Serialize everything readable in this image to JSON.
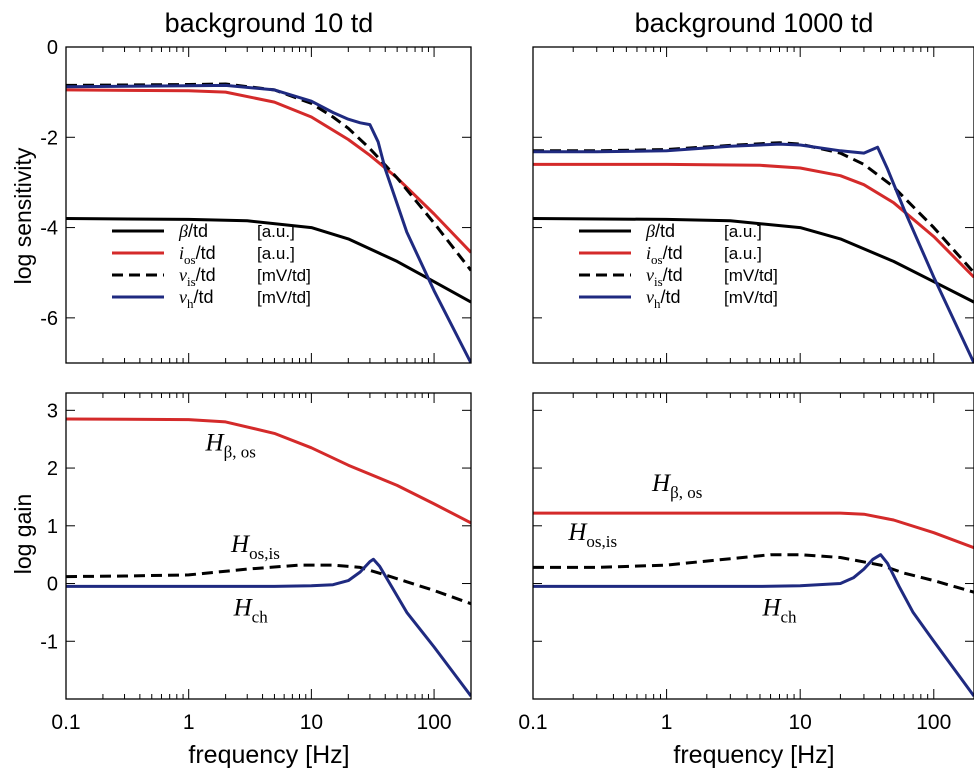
{
  "colors": {
    "black": "#000000",
    "red": "#d42a2a",
    "blue": "#1f2a80",
    "dashed": "#000000"
  },
  "chart_data": [
    {
      "type": "line",
      "title": "background 10 td",
      "xlabel": "",
      "ylabel": "log sensitivity",
      "xscale": "log",
      "xlim": [
        0.1,
        200
      ],
      "ylim": [
        -7,
        0
      ],
      "xticks": [
        0.1,
        1,
        10,
        100
      ],
      "xtick_labels": [
        "0.1",
        "1",
        "10",
        "100"
      ],
      "yticks": [
        0,
        -2,
        -4,
        -6
      ],
      "ytick_labels": [
        "0",
        "-2",
        "-4",
        "-6"
      ],
      "legend_position": "lower-left",
      "series": [
        {
          "name": "β/td [a.u.]",
          "style": "solid",
          "color": "black",
          "x": [
            0.1,
            1,
            3,
            10,
            20,
            50,
            100,
            200
          ],
          "y": [
            -3.8,
            -3.82,
            -3.85,
            -4.0,
            -4.25,
            -4.75,
            -5.2,
            -5.65
          ]
        },
        {
          "name": "i_os/td [a.u.]",
          "style": "solid",
          "color": "red",
          "x": [
            0.1,
            1,
            2,
            5,
            10,
            20,
            30,
            50,
            100,
            200
          ],
          "y": [
            -0.95,
            -0.97,
            -1.0,
            -1.22,
            -1.55,
            -2.05,
            -2.4,
            -2.9,
            -3.7,
            -4.55
          ]
        },
        {
          "name": "v_is/td [mV/td]",
          "style": "dashed",
          "color": "black",
          "x": [
            0.1,
            1,
            2,
            5,
            10,
            15,
            20,
            30,
            50,
            100,
            200
          ],
          "y": [
            -0.85,
            -0.83,
            -0.82,
            -0.95,
            -1.25,
            -1.55,
            -1.8,
            -2.25,
            -2.9,
            -3.9,
            -4.95
          ]
        },
        {
          "name": "v_h/td [mV/td]",
          "style": "solid",
          "color": "blue",
          "x": [
            0.1,
            1,
            2,
            5,
            10,
            15,
            20,
            25,
            30,
            35,
            40,
            60,
            100,
            200
          ],
          "y": [
            -0.88,
            -0.86,
            -0.85,
            -0.95,
            -1.2,
            -1.45,
            -1.6,
            -1.68,
            -1.72,
            -2.1,
            -2.7,
            -4.1,
            -5.4,
            -7.0
          ]
        }
      ],
      "legend_entries": [
        {
          "sym": "β",
          "sub": "",
          "unit": "[a.u.]",
          "color": "black",
          "style": "solid"
        },
        {
          "sym": "i",
          "sub": "os",
          "unit": "[a.u.]",
          "color": "red",
          "style": "solid"
        },
        {
          "sym": "v",
          "sub": "is",
          "unit": "[mV/td]",
          "color": "black",
          "style": "dashed"
        },
        {
          "sym": "v",
          "sub": "h",
          "unit": "[mV/td]",
          "color": "blue",
          "style": "solid"
        }
      ],
      "legend_suffix": "/td"
    },
    {
      "type": "line",
      "title": "background 1000 td",
      "xlabel": "",
      "ylabel": "",
      "xscale": "log",
      "xlim": [
        0.1,
        200
      ],
      "ylim": [
        -7,
        0
      ],
      "xticks": [
        0.1,
        1,
        10,
        100
      ],
      "xtick_labels": [
        "0.1",
        "1",
        "10",
        "100"
      ],
      "yticks": [
        0,
        -2,
        -4,
        -6
      ],
      "ytick_labels": [],
      "legend_position": "lower-left",
      "series": [
        {
          "name": "β/td [a.u.]",
          "style": "solid",
          "color": "black",
          "x": [
            0.1,
            1,
            3,
            10,
            20,
            50,
            100,
            200
          ],
          "y": [
            -3.8,
            -3.82,
            -3.85,
            -4.0,
            -4.25,
            -4.75,
            -5.2,
            -5.65
          ]
        },
        {
          "name": "i_os/td [a.u.]",
          "style": "solid",
          "color": "red",
          "x": [
            0.1,
            1,
            5,
            10,
            20,
            30,
            50,
            100,
            200
          ],
          "y": [
            -2.6,
            -2.6,
            -2.62,
            -2.68,
            -2.85,
            -3.05,
            -3.45,
            -4.2,
            -5.1
          ]
        },
        {
          "name": "v_is/td [mV/td]",
          "style": "dashed",
          "color": "black",
          "x": [
            0.1,
            0.3,
            1,
            3,
            7,
            10,
            20,
            30,
            50,
            100,
            200
          ],
          "y": [
            -2.3,
            -2.3,
            -2.27,
            -2.18,
            -2.12,
            -2.15,
            -2.35,
            -2.6,
            -3.1,
            -4.0,
            -5.0
          ]
        },
        {
          "name": "v_h/td [mV/td]",
          "style": "solid",
          "color": "blue",
          "x": [
            0.1,
            0.3,
            1,
            3,
            7,
            10,
            20,
            30,
            38,
            45,
            60,
            100,
            200
          ],
          "y": [
            -2.32,
            -2.32,
            -2.3,
            -2.2,
            -2.15,
            -2.17,
            -2.3,
            -2.35,
            -2.22,
            -2.7,
            -3.6,
            -5.1,
            -7.0
          ]
        }
      ],
      "legend_entries": [
        {
          "sym": "β",
          "sub": "",
          "unit": "[a.u.]",
          "color": "black",
          "style": "solid"
        },
        {
          "sym": "i",
          "sub": "os",
          "unit": "[a.u.]",
          "color": "red",
          "style": "solid"
        },
        {
          "sym": "v",
          "sub": "is",
          "unit": "[mV/td]",
          "color": "black",
          "style": "dashed"
        },
        {
          "sym": "v",
          "sub": "h",
          "unit": "[mV/td]",
          "color": "blue",
          "style": "solid"
        }
      ],
      "legend_suffix": "/td"
    },
    {
      "type": "line",
      "title": "",
      "xlabel": "frequency [Hz]",
      "ylabel": "log gain",
      "xscale": "log",
      "xlim": [
        0.1,
        200
      ],
      "ylim": [
        -2,
        3.3
      ],
      "xticks": [
        0.1,
        1,
        10,
        100
      ],
      "xtick_labels": [
        "0.1",
        "1",
        "10",
        "100"
      ],
      "yticks": [
        3,
        2,
        1,
        0,
        -1
      ],
      "ytick_labels": [
        "3",
        "2",
        "1",
        "0",
        "-1"
      ],
      "series": [
        {
          "name": "H_β,os",
          "style": "solid",
          "color": "red",
          "x": [
            0.1,
            1,
            2,
            5,
            10,
            20,
            50,
            100,
            200
          ],
          "y": [
            2.85,
            2.84,
            2.8,
            2.6,
            2.35,
            2.05,
            1.7,
            1.38,
            1.05
          ]
        },
        {
          "name": "H_os,is",
          "style": "dashed",
          "color": "black",
          "x": [
            0.1,
            0.3,
            1,
            3,
            8,
            15,
            25,
            40,
            60,
            100,
            200
          ],
          "y": [
            0.12,
            0.13,
            0.15,
            0.25,
            0.32,
            0.32,
            0.28,
            0.15,
            0.03,
            -0.12,
            -0.35
          ]
        },
        {
          "name": "H_ch",
          "style": "solid",
          "color": "blue",
          "x": [
            0.1,
            1,
            5,
            10,
            15,
            20,
            25,
            30,
            32,
            36,
            45,
            60,
            100,
            200
          ],
          "y": [
            -0.05,
            -0.05,
            -0.05,
            -0.04,
            -0.02,
            0.05,
            0.2,
            0.38,
            0.42,
            0.3,
            -0.05,
            -0.5,
            -1.1,
            -1.95
          ]
        }
      ],
      "annotations": [
        {
          "sym": "H",
          "sub": "β, os",
          "at": [
            2.2,
            2.3
          ]
        },
        {
          "sym": "H",
          "sub": "os,is",
          "at": [
            3.5,
            0.55
          ]
        },
        {
          "sym": "H",
          "sub": "ch",
          "at": [
            3.2,
            -0.55
          ]
        }
      ]
    },
    {
      "type": "line",
      "title": "",
      "xlabel": "frequency [Hz]",
      "ylabel": "",
      "xscale": "log",
      "xlim": [
        0.1,
        200
      ],
      "ylim": [
        -2,
        3.3
      ],
      "xticks": [
        0.1,
        1,
        10,
        100
      ],
      "xtick_labels": [
        "0.1",
        "1",
        "10",
        "100"
      ],
      "yticks": [
        3,
        2,
        1,
        0,
        -1
      ],
      "ytick_labels": [],
      "series": [
        {
          "name": "H_β,os",
          "style": "solid",
          "color": "red",
          "x": [
            0.1,
            1,
            10,
            20,
            30,
            50,
            100,
            200
          ],
          "y": [
            1.22,
            1.22,
            1.22,
            1.22,
            1.2,
            1.1,
            0.88,
            0.62
          ]
        },
        {
          "name": "H_os,is",
          "style": "dashed",
          "color": "black",
          "x": [
            0.1,
            0.3,
            1,
            3,
            6,
            10,
            20,
            40,
            60,
            100,
            200
          ],
          "y": [
            0.28,
            0.28,
            0.32,
            0.43,
            0.5,
            0.5,
            0.45,
            0.32,
            0.18,
            0.05,
            -0.15
          ]
        },
        {
          "name": "H_ch",
          "style": "solid",
          "color": "blue",
          "x": [
            0.1,
            1,
            5,
            10,
            20,
            25,
            30,
            35,
            40,
            45,
            55,
            70,
            100,
            200
          ],
          "y": [
            -0.05,
            -0.05,
            -0.05,
            -0.04,
            0.0,
            0.1,
            0.25,
            0.42,
            0.5,
            0.35,
            -0.05,
            -0.5,
            -1.0,
            -1.95
          ]
        }
      ],
      "annotations": [
        {
          "sym": "H",
          "sub": "β, os",
          "at": [
            1.2,
            1.6
          ]
        },
        {
          "sym": "H",
          "sub": "os,is",
          "at": [
            0.28,
            0.75
          ]
        },
        {
          "sym": "H",
          "sub": "ch",
          "at": [
            7.0,
            -0.55
          ]
        }
      ]
    }
  ]
}
